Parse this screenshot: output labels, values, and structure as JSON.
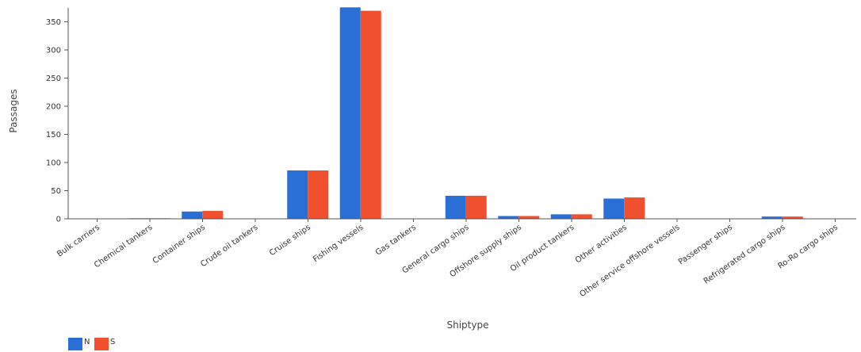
{
  "chart_data": {
    "type": "bar",
    "title": "",
    "xlabel": "Shiptype",
    "ylabel": "Passages",
    "ylim": [
      0,
      375
    ],
    "yticks": [
      0,
      50,
      100,
      150,
      200,
      250,
      300,
      350
    ],
    "grid": false,
    "legend_position": "bottom-left",
    "categories": [
      "Bulk carriers",
      "Chemical tankers",
      "Container ships",
      "Crude oil tankers",
      "Cruise ships",
      "Fishing vessels",
      "Gas tankers",
      "General cargo ships",
      "Offshore supply ships",
      "Oil product tankers",
      "Other activities",
      "Other service offshore vessels",
      "Passenger ships",
      "Refrigerated cargo ships",
      "Ro-Ro cargo ships"
    ],
    "series": [
      {
        "name": "N",
        "color": "#2a6fd6",
        "values": [
          0,
          1,
          13,
          0,
          86,
          376,
          0,
          41,
          5,
          8,
          36,
          0,
          0,
          4,
          0
        ]
      },
      {
        "name": "S",
        "color": "#f0502d",
        "values": [
          0,
          1,
          14,
          0,
          86,
          370,
          0,
          41,
          5,
          8,
          38,
          0,
          0,
          4,
          0
        ]
      }
    ]
  }
}
